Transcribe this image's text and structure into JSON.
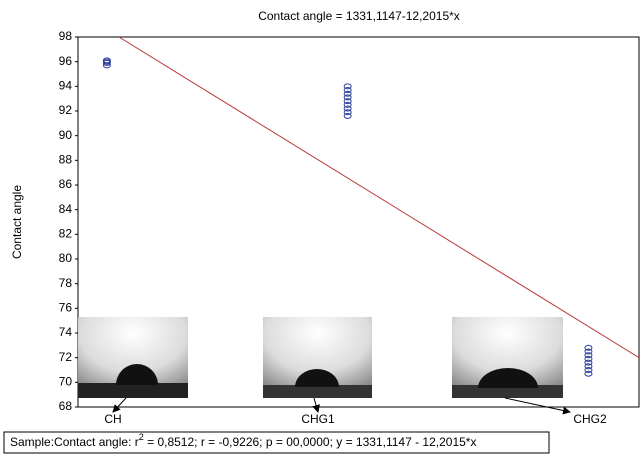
{
  "chart_data": {
    "type": "scatter",
    "title": "Contact angle = 1331,1147-12,2015*x",
    "y_label": "Contact angle",
    "categories": [
      "CH",
      "CHG1",
      "CHG2"
    ],
    "values": [
      [
        95.7,
        95.9,
        96.0,
        96.1
      ],
      [
        91.6,
        91.9,
        92.2,
        92.5,
        92.8,
        93.1,
        93.4,
        93.7,
        94.0
      ],
      [
        70.7,
        71.0,
        71.3,
        71.6,
        71.9,
        72.2,
        72.5,
        72.8
      ]
    ],
    "color": "#2a3f9a",
    "trend_line": {
      "x": [
        0.05,
        2.21
      ],
      "y": [
        98,
        72
      ],
      "color": "#b83a3a"
    },
    "xlim": [
      -0.12,
      2.21
    ],
    "ylim": [
      68,
      98
    ],
    "yticks": [
      68,
      70,
      72,
      74,
      76,
      78,
      80,
      82,
      84,
      86,
      88,
      90,
      92,
      94,
      96,
      98
    ],
    "footer": [
      "Sample:Contact angle:  r",
      "2",
      " = 0,8512;  r = -0,9226; p = 00,0000;  y = 1331,1147 - 12,2015*x"
    ]
  }
}
